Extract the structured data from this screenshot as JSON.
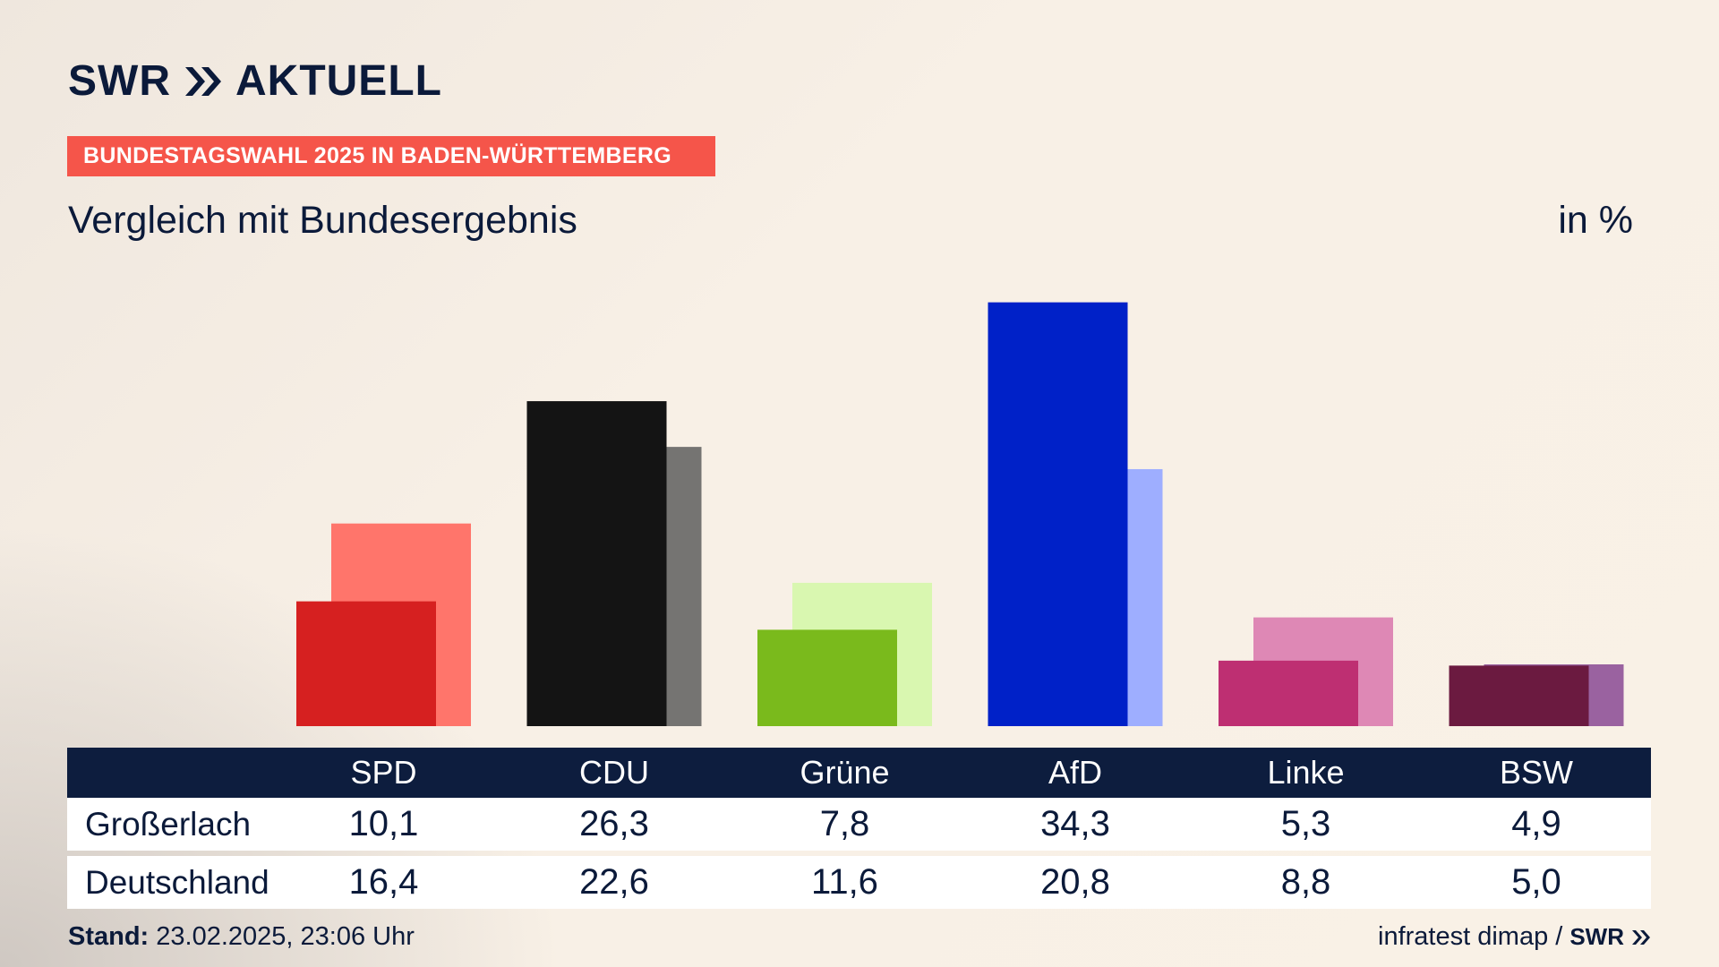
{
  "brand": {
    "logo_text": "SWR",
    "logo_suffix": "AKTUELL"
  },
  "badge": "BUNDESTAGSWAHL 2025 IN BADEN-WÜRTTEMBERG",
  "subtitle": "Vergleich mit Bundesergebnis",
  "unit": "in %",
  "table": {
    "rows": [
      {
        "label": "Großerlach",
        "values": [
          "10,1",
          "26,3",
          "7,8",
          "34,3",
          "5,3",
          "4,9"
        ]
      },
      {
        "label": "Deutschland",
        "values": [
          "16,4",
          "22,6",
          "11,6",
          "20,8",
          "8,8",
          "5,0"
        ]
      }
    ]
  },
  "footer": {
    "stand_label": "Stand:",
    "stand_value": "23.02.2025, 23:06 Uhr",
    "source": "infratest dimap /",
    "source_logo": "SWR"
  },
  "chart_data": {
    "type": "bar",
    "categories": [
      "SPD",
      "CDU",
      "Grüne",
      "AfD",
      "Linke",
      "BSW"
    ],
    "series": [
      {
        "name": "Großerlach",
        "values": [
          10.1,
          26.3,
          7.8,
          34.3,
          5.3,
          4.9
        ]
      },
      {
        "name": "Deutschland",
        "values": [
          16.4,
          22.6,
          11.6,
          20.8,
          8.8,
          5.0
        ]
      }
    ],
    "colors": {
      "primary": [
        "#d62020",
        "#141414",
        "#7aba1c",
        "#0021c8",
        "#be2f72",
        "#6b1a40"
      ],
      "secondary": [
        "#ff756b",
        "#757472",
        "#d9f7b0",
        "#9eaeff",
        "#de88b5",
        "#9a62a0"
      ]
    },
    "title": "",
    "xlabel": "",
    "ylabel": "",
    "ylim": [
      0,
      34.3
    ],
    "grid": false,
    "legend": "none"
  }
}
